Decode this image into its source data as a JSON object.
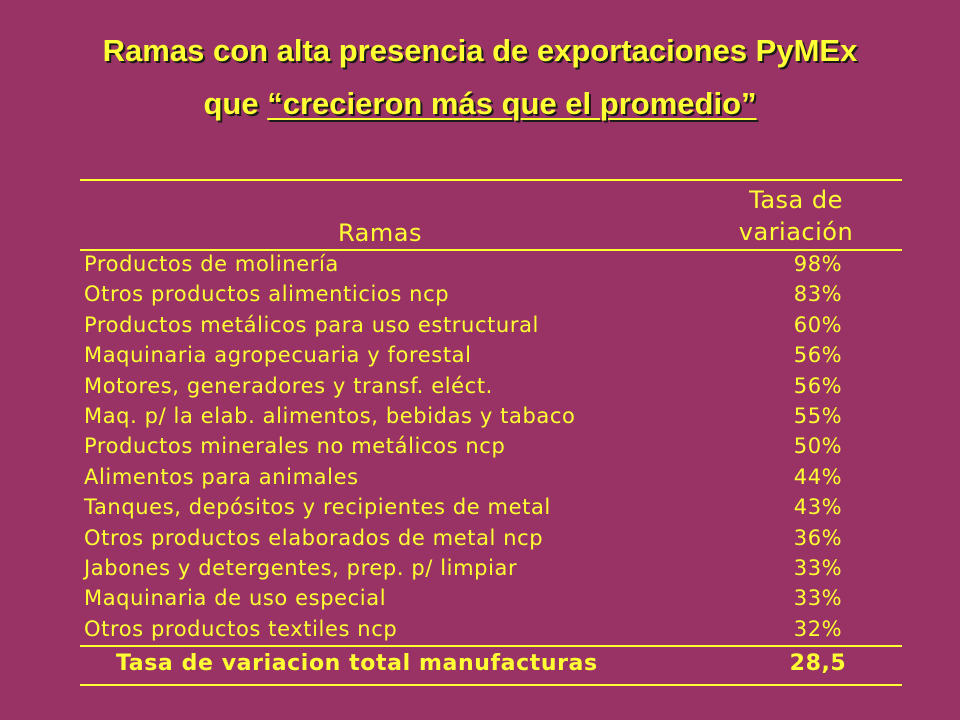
{
  "title": {
    "line1": "Ramas con alta presencia de exportaciones PyMEx",
    "line2_prefix": "que ",
    "line2_underlined": "“crecieron más que el promedio”"
  },
  "table": {
    "header": {
      "ramas": "Ramas",
      "tasa_line1": "Tasa de",
      "tasa_line2": "variación"
    },
    "rows": [
      {
        "name": "Productos de molinería",
        "value": "98%"
      },
      {
        "name": "Otros productos alimenticios ncp",
        "value": "83%"
      },
      {
        "name": "Productos metálicos para uso estructural",
        "value": "60%"
      },
      {
        "name": "Maquinaria agropecuaria y forestal",
        "value": "56%"
      },
      {
        "name": "Motores, generadores y transf. eléct.",
        "value": "56%"
      },
      {
        "name": "Maq. p/ la elab. alimentos, bebidas y tabaco",
        "value": "55%"
      },
      {
        "name": "Productos minerales no metálicos ncp",
        "value": "50%"
      },
      {
        "name": "Alimentos  para animales",
        "value": "44%"
      },
      {
        "name": "Tanques, depósitos y recipientes de metal",
        "value": "43%"
      },
      {
        "name": "Otros productos elaborados de metal ncp",
        "value": "36%"
      },
      {
        "name": "Jabones y detergentes, prep. p/ limpiar",
        "value": "33%"
      },
      {
        "name": "Maquinaria de uso especial",
        "value": "33%"
      },
      {
        "name": "Otros productos textiles ncp",
        "value": "32%"
      }
    ],
    "total": {
      "name": "Tasa de variacion total manufacturas",
      "value": "28,5"
    }
  },
  "colors": {
    "background": "#993366",
    "text": "#ffff33",
    "title_shadow": "#1a1a1a"
  }
}
